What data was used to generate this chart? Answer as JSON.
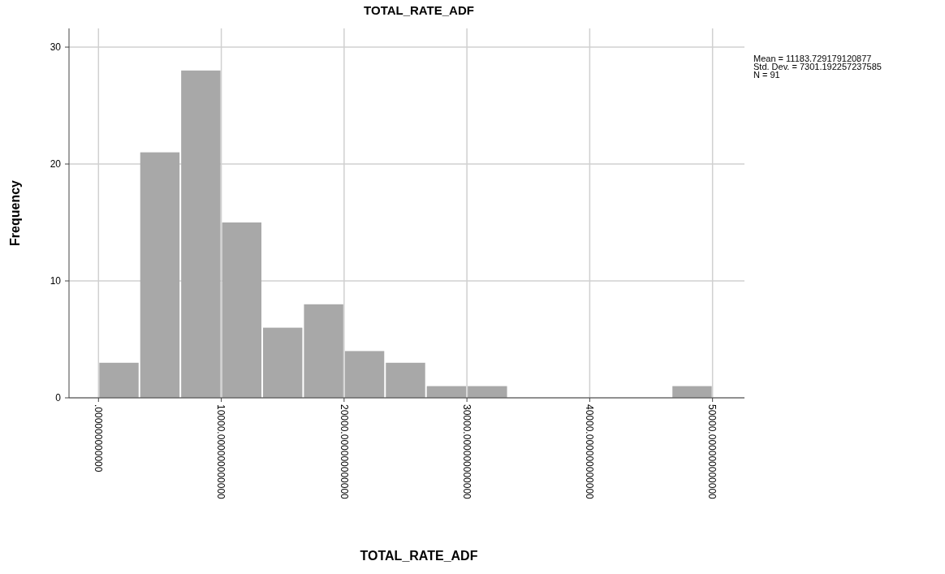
{
  "chart_data": {
    "type": "histogram",
    "title": "TOTAL_RATE_ADF",
    "xlabel": "TOTAL_RATE_ADF",
    "ylabel": "Frequency",
    "bins": [
      0,
      3333.33,
      6666.67,
      10000,
      13333.33,
      16666.67,
      20000,
      23333.33,
      26666.67,
      30000,
      33333.33,
      36666.67,
      40000,
      43333.33,
      46666.67,
      50000
    ],
    "values": [
      3,
      21,
      28,
      15,
      6,
      8,
      4,
      3,
      1,
      1,
      0,
      0,
      0,
      0,
      1
    ],
    "color": "#a8a8a8",
    "xlim": [
      -2400,
      52600
    ],
    "xticks": [
      {
        "value": 0,
        "label": ".000000000000"
      },
      {
        "value": 10000,
        "label": "10000.000000000000"
      },
      {
        "value": 20000,
        "label": "20000.000000000000"
      },
      {
        "value": 30000,
        "label": "30000.000000000000"
      },
      {
        "value": 40000,
        "label": "40000.000000000000"
      },
      {
        "value": 50000,
        "label": "50000.000000000000"
      }
    ],
    "ylim": [
      0,
      31.6
    ],
    "yticks": [
      0,
      10,
      20,
      30
    ],
    "grid": true,
    "annotations": [
      "Mean = 11183.729179120877",
      "Std. Dev. = 7301.192257237585",
      "N = 91"
    ]
  }
}
